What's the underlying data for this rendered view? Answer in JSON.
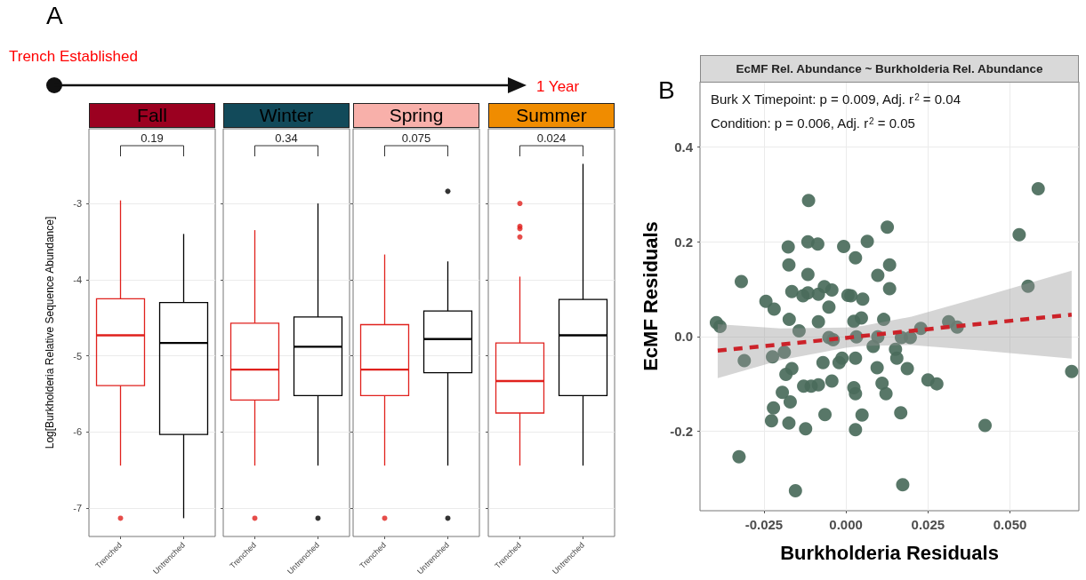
{
  "chart_data": [
    {
      "type": "box",
      "title": "Fall",
      "ylabel": "Log[Burkholderia Relative Sequence Abundance]",
      "categories": [
        "Trenched",
        "Untrenched"
      ],
      "colors": [
        "#e0211d",
        "#000000"
      ],
      "boxes": [
        {
          "low": -6.44,
          "q1": -5.39,
          "median": -4.73,
          "q3": -4.25,
          "high": -2.96,
          "outliers": [
            -7.13
          ]
        },
        {
          "low": -7.13,
          "q1": -6.03,
          "median": -4.83,
          "q3": -4.3,
          "high": -3.4
        }
      ],
      "ylim": [
        -7.37,
        -2.02
      ],
      "yticks": [
        -7,
        -6,
        -5,
        -4,
        -3
      ],
      "grid": true,
      "annotations": [
        "0.19",
        "A",
        "Trench Established",
        "1 Year"
      ]
    },
    {
      "type": "box",
      "title": "Winter",
      "categories": [
        "Trenched",
        "Untrenched"
      ],
      "colors": [
        "#e0211d",
        "#000000"
      ],
      "boxes": [
        {
          "low": -6.44,
          "q1": -5.58,
          "median": -5.18,
          "q3": -4.57,
          "high": -3.35,
          "outliers": [
            -7.13
          ]
        },
        {
          "low": -6.44,
          "q1": -5.52,
          "median": -4.88,
          "q3": -4.49,
          "high": -3.0,
          "outliers": [
            -7.13
          ]
        }
      ],
      "ylim": [
        -7.37,
        -2.02
      ],
      "yticks": [
        -7,
        -6,
        -5,
        -4,
        -3
      ],
      "grid": true,
      "tick_labels": "x",
      "annotations": [
        "0.34"
      ]
    },
    {
      "type": "box",
      "title": "Spring",
      "categories": [
        "Trenched",
        "Untrenched"
      ],
      "colors": [
        "#e0211d",
        "#000000"
      ],
      "boxes": [
        {
          "low": -6.44,
          "q1": -5.52,
          "median": -5.18,
          "q3": -4.59,
          "high": -3.67,
          "outliers": [
            -7.13
          ]
        },
        {
          "low": -6.44,
          "q1": -5.22,
          "median": -4.78,
          "q3": -4.41,
          "high": -3.76,
          "outliers": [
            -2.84,
            -7.13
          ]
        }
      ],
      "ylim": [
        -7.37,
        -2.02
      ],
      "yticks": [
        -7,
        -6,
        -5,
        -4,
        -3
      ],
      "grid": true,
      "tick_labels": "x",
      "annotations": [
        "0.075"
      ]
    },
    {
      "type": "box",
      "title": "Summer",
      "categories": [
        "Trenched",
        "Untrenched"
      ],
      "colors": [
        "#e0211d",
        "#000000"
      ],
      "boxes": [
        {
          "low": -6.44,
          "q1": -5.75,
          "median": -5.33,
          "q3": -4.83,
          "high": -3.96,
          "outliers": [
            -3.0,
            -3.3,
            -3.33,
            -3.44
          ]
        },
        {
          "low": -6.44,
          "q1": -5.52,
          "median": -4.73,
          "q3": -4.26,
          "high": -2.48
        }
      ],
      "ylim": [
        -7.37,
        -2.02
      ],
      "yticks": [
        -7,
        -6,
        -5,
        -4,
        -3
      ],
      "grid": true,
      "tick_labels": "x",
      "annotations": [
        "0.024"
      ]
    },
    {
      "type": "scatter",
      "title": "EcMF Rel. Abundance ~ Burkholderia Rel. Abundance",
      "xlabel": "Burkholderia Residuals",
      "ylabel": "EcMF Residuals",
      "marker": "circle",
      "grid": true,
      "xlim": [
        -0.0445,
        0.071
      ],
      "xticks": [
        {
          "value": -0.025,
          "label": "-0.025"
        },
        {
          "value": 0,
          "label": "0.000"
        },
        {
          "value": 0.025,
          "label": "0.025"
        },
        {
          "value": 0.05,
          "label": "0.050"
        }
      ],
      "ylim": [
        -0.368,
        0.538
      ],
      "yticks": [
        -0.2,
        {
          "value": 0,
          "label": "0.0"
        },
        0.2,
        0.4
      ],
      "annotations": [
        "Burk X Timepoint: p = 0.009, Adj. r$^{2}$ = 0.04",
        "Condition: p = 0.006, Adj. r$^{2}$ = 0.05",
        "B"
      ],
      "series": [
        {
          "type": "scatter",
          "color": "#4a6b5b",
          "x": [
            -0.0395,
            -0.0384,
            -0.0319,
            -0.031,
            -0.0326,
            -0.0244,
            -0.0219,
            -0.0173,
            -0.0224,
            -0.0188,
            -0.0143,
            -0.0165,
            -0.0131,
            -0.0116,
            -0.0084,
            -0.0084,
            -0.0066,
            -0.0043,
            -0.0052,
            -0.0052,
            -0.0039,
            -0.007,
            -0.0021,
            -0.0012,
            0.0029,
            0.0032,
            0.0024,
            0.0047,
            0.0015,
            0.0051,
            0.0115,
            0.0083,
            0.0097,
            0.0095,
            0.011,
            0.0122,
            0.0151,
            0.0155,
            0.0187,
            0.0169,
            0.0196,
            0.0097,
            0.0133,
            0.0228,
            0.025,
            0.0277,
            0.0313,
            0.0339,
            0.0555,
            0.0688,
            0.0424,
            0.0167,
            0.0173,
            0.0049,
            0.0029,
            -0.0064,
            -0.0123,
            -0.0174,
            -0.0227,
            -0.0221,
            -0.017,
            -0.0194,
            -0.0183,
            -0.0165,
            -0.0129,
            -0.0106,
            -0.0084,
            -0.0043,
            0.0029,
            0.0024,
            -0.0154,
            -0.0114,
            0.0586,
            0.0528,
            0.0126,
            0.0065,
            -0.0007,
            0.0029,
            -0.0116,
            -0.0086,
            -0.0176,
            -0.0174,
            0.0133,
            -0.0116,
            0.0006
          ],
          "values": [
            0.029,
            0.021,
            0.116,
            -0.051,
            -0.254,
            0.074,
            0.058,
            0.036,
            -0.043,
            -0.033,
            0.012,
            0.095,
            0.086,
            0.092,
            0.031,
            0.089,
            0.105,
            0.098,
            0.062,
            -0.002,
            -0.007,
            -0.055,
            -0.055,
            -0.046,
            -0.046,
            -0.001,
            0.032,
            0.039,
            0.086,
            0.079,
            0.036,
            -0.021,
            -0.001,
            -0.066,
            -0.099,
            -0.121,
            -0.027,
            -0.046,
            -0.068,
            -0.002,
            -0.002,
            0.129,
            0.101,
            0.017,
            -0.092,
            -0.1,
            0.031,
            0.02,
            0.106,
            -0.074,
            -0.188,
            -0.161,
            -0.313,
            -0.166,
            -0.197,
            -0.165,
            -0.195,
            -0.183,
            -0.178,
            -0.151,
            -0.138,
            -0.118,
            -0.08,
            -0.068,
            -0.105,
            -0.105,
            -0.102,
            -0.094,
            -0.121,
            -0.108,
            -0.326,
            0.287,
            0.312,
            0.215,
            0.231,
            0.201,
            0.19,
            0.166,
            0.2,
            0.195,
            0.189,
            0.151,
            0.151,
            0.131,
            0.087
          ]
        },
        {
          "type": "line",
          "color": "#cc2229",
          "line_style": "dashed",
          "marker": "none",
          "x": [
            -0.0391,
            -0.02,
            0,
            0.005,
            0.02,
            0.04,
            0.0688
          ],
          "values": [
            -0.03,
            -0.017,
            -0.003,
            0.001,
            0.012,
            0.026,
            0.046
          ],
          "lower": [
            -0.088,
            -0.05,
            -0.024,
            -0.02,
            -0.018,
            -0.029,
            -0.047
          ],
          "upper": [
            0.026,
            0.017,
            0.019,
            0.022,
            0.042,
            0.081,
            0.139
          ]
        }
      ]
    }
  ]
}
